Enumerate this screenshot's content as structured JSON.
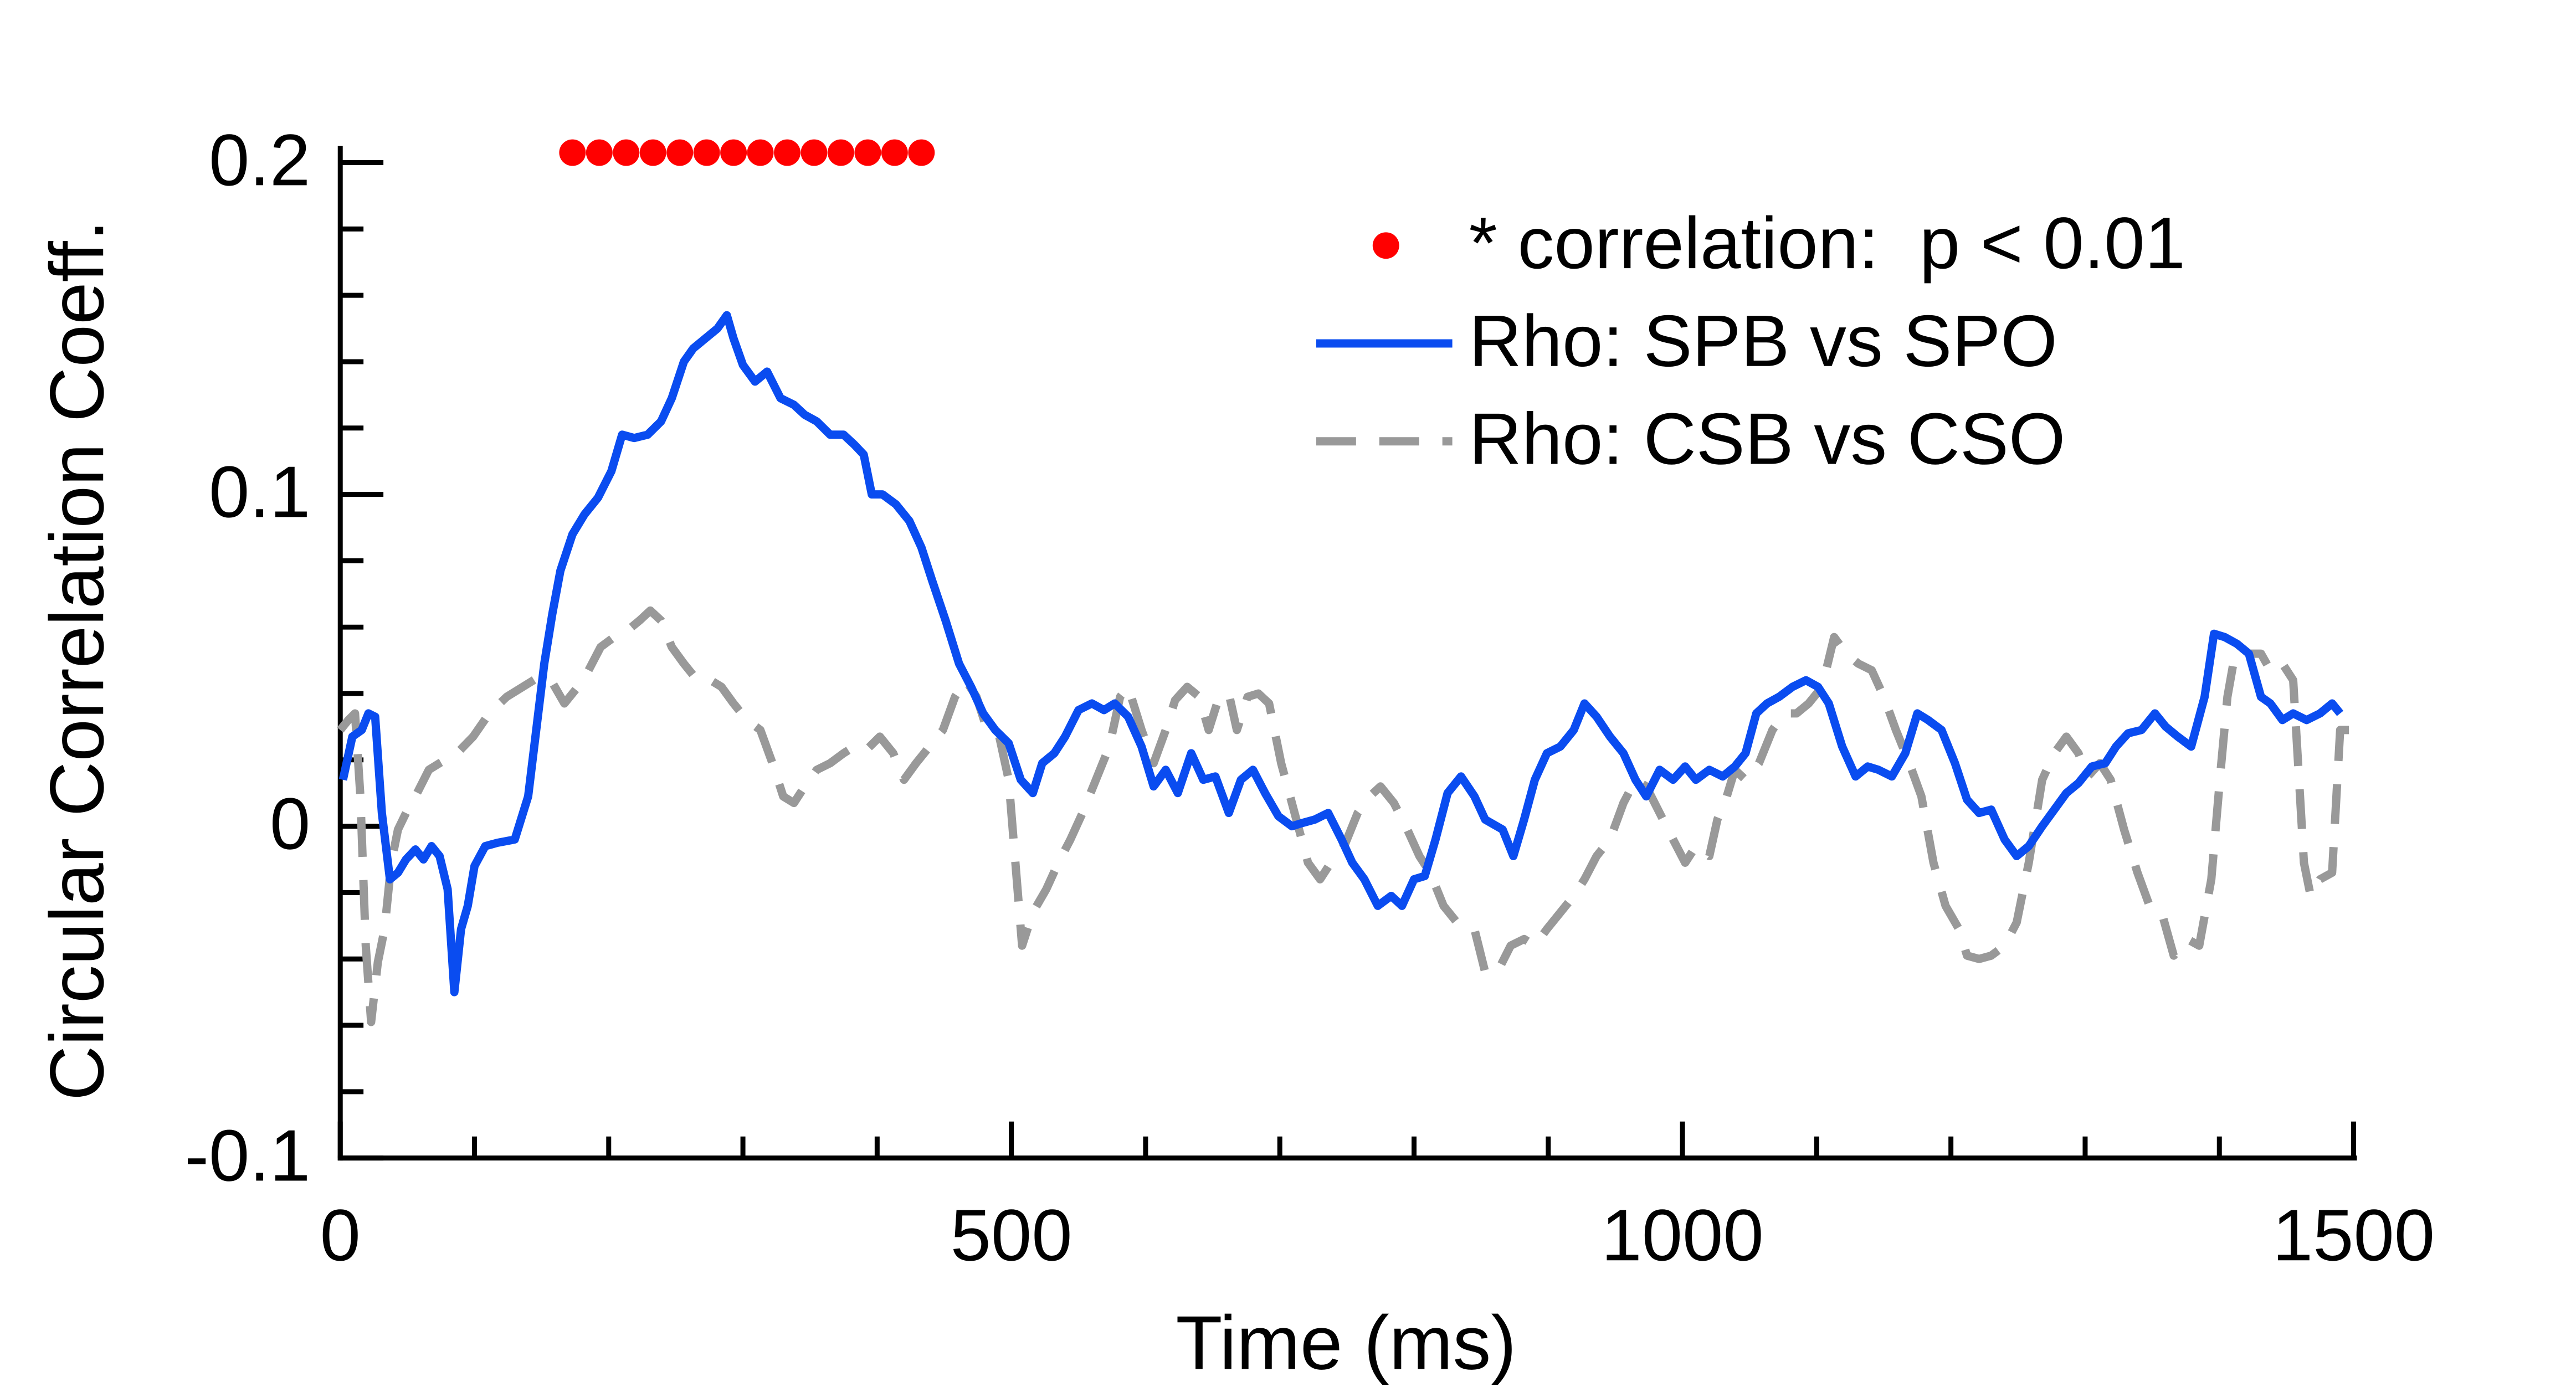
{
  "chart_data": {
    "type": "line",
    "xlabel": "Time (ms)",
    "ylabel": "Circular Correlation Coeff.",
    "xlim": [
      0,
      1500
    ],
    "ylim": [
      -0.1,
      0.2
    ],
    "xticks": [
      0,
      500,
      1000,
      1500
    ],
    "yticks": [
      -0.1,
      0,
      0.1,
      0.2
    ],
    "xminorticks": [
      100,
      200,
      300,
      400,
      600,
      700,
      800,
      900,
      1100,
      1200,
      1300,
      1400
    ],
    "yminorticks": [
      -0.08,
      -0.06,
      -0.04,
      -0.02,
      0.02,
      0.04,
      0.06,
      0.08,
      0.12,
      0.14,
      0.16,
      0.18
    ],
    "legend": "upper right",
    "series": [
      {
        "name": "* correlation:  p < 0.01",
        "color": "#ff0000",
        "style": "dots",
        "x": [
          173,
          193,
          213,
          233,
          253,
          273,
          293,
          313,
          333,
          353,
          373,
          393,
          413,
          433
        ],
        "values": [
          0.203,
          0.203,
          0.203,
          0.203,
          0.203,
          0.203,
          0.203,
          0.203,
          0.203,
          0.203,
          0.203,
          0.203,
          0.203,
          0.203
        ]
      },
      {
        "name": "Rho: SPB vs SPO",
        "color": "#0a4cf0",
        "style": "solid",
        "x": [
          2,
          9,
          16,
          21,
          26,
          31,
          37,
          43,
          49,
          56,
          62,
          68,
          74,
          80,
          85,
          90,
          95,
          100,
          108,
          117,
          130,
          140,
          146,
          152,
          158,
          164,
          173,
          182,
          192,
          202,
          210,
          219,
          229,
          239,
          247,
          256,
          263,
          272,
          281,
          288,
          293,
          300,
          309,
          318,
          328,
          338,
          346,
          355,
          365,
          375,
          383,
          390,
          396,
          404,
          414,
          424,
          433,
          441,
          451,
          461,
          470,
          479,
          488,
          498,
          507,
          516,
          523,
          532,
          540,
          550,
          560,
          569,
          577,
          587,
          597,
          606,
          615,
          624,
          634,
          643,
          652,
          662,
          671,
          680,
          689,
          699,
          709,
          717,
          726,
          736,
          746,
          754,
          763,
          773,
          783,
          791,
          800,
          808,
          816,
          825,
          835,
          845,
          853,
          866,
          874,
          882,
          890,
          899,
          909,
          919,
          927,
          936,
          946,
          956,
          965,
          973,
          983,
          993,
          1002,
          1010,
          1020,
          1030,
          1039,
          1047,
          1055,
          1063,
          1072,
          1082,
          1092,
          1101,
          1109,
          1119,
          1129,
          1138,
          1146,
          1156,
          1166,
          1175,
          1183,
          1193,
          1203,
          1212,
          1221,
          1230,
          1240,
          1249,
          1258,
          1268,
          1277,
          1286,
          1295,
          1305,
          1315,
          1323,
          1332,
          1342,
          1352,
          1360,
          1369,
          1379,
          1389,
          1396,
          1404,
          1413,
          1422,
          1431,
          1438,
          1447,
          1455,
          1465,
          1475,
          1484,
          1490
        ],
        "values": [
          0.014,
          0.027,
          0.029,
          0.034,
          0.033,
          0.004,
          -0.016,
          -0.014,
          -0.01,
          -0.007,
          -0.01,
          -0.006,
          -0.009,
          -0.019,
          -0.05,
          -0.031,
          -0.024,
          -0.012,
          -0.006,
          -0.005,
          -0.004,
          0.009,
          0.029,
          0.049,
          0.064,
          0.077,
          0.088,
          0.094,
          0.099,
          0.107,
          0.118,
          0.117,
          0.118,
          0.122,
          0.129,
          0.14,
          0.144,
          0.147,
          0.15,
          0.154,
          0.147,
          0.139,
          0.134,
          0.137,
          0.129,
          0.127,
          0.124,
          0.122,
          0.118,
          0.118,
          0.115,
          0.112,
          0.1,
          0.1,
          0.097,
          0.092,
          0.084,
          0.074,
          0.062,
          0.049,
          0.042,
          0.034,
          0.029,
          0.025,
          0.014,
          0.01,
          0.019,
          0.022,
          0.027,
          0.035,
          0.037,
          0.035,
          0.037,
          0.033,
          0.024,
          0.012,
          0.017,
          0.01,
          0.022,
          0.014,
          0.015,
          0.004,
          0.014,
          0.017,
          0.01,
          0.003,
          0,
          0.001,
          0.002,
          0.004,
          -0.004,
          -0.011,
          -0.016,
          -0.024,
          -0.021,
          -0.024,
          -0.016,
          -0.015,
          -0.004,
          0.01,
          0.015,
          0.009,
          0.002,
          -0.001,
          -0.009,
          0.002,
          0.014,
          0.022,
          0.024,
          0.029,
          0.037,
          0.033,
          0.027,
          0.022,
          0.014,
          0.009,
          0.017,
          0.014,
          0.018,
          0.014,
          0.017,
          0.015,
          0.018,
          0.022,
          0.034,
          0.037,
          0.039,
          0.042,
          0.044,
          0.042,
          0.037,
          0.024,
          0.015,
          0.018,
          0.017,
          0.015,
          0.022,
          0.034,
          0.032,
          0.029,
          0.019,
          0.008,
          0.004,
          0.005,
          -0.004,
          -0.009,
          -0.006,
          0,
          0.005,
          0.01,
          0.013,
          0.018,
          0.019,
          0.024,
          0.028,
          0.029,
          0.034,
          0.03,
          0.027,
          0.024,
          0.039,
          0.058,
          0.057,
          0.055,
          0.052,
          0.039,
          0.037,
          0.032,
          0.034,
          0.032,
          0.034,
          0.037,
          0.034
        ]
      },
      {
        "name": "Rho: CSB vs CSO",
        "color": "#999999",
        "style": "dashed",
        "x": [
          0,
          6,
          11,
          15,
          19,
          23,
          28,
          33,
          38,
          43,
          49,
          56,
          66,
          74,
          87,
          99,
          111,
          124,
          136,
          148,
          157,
          167,
          177,
          185,
          194,
          204,
          214,
          223,
          231,
          239,
          247,
          256,
          266,
          276,
          284,
          293,
          303,
          313,
          322,
          330,
          338,
          346,
          355,
          365,
          375,
          383,
          392,
          402,
          412,
          420,
          429,
          439,
          449,
          458,
          466,
          474,
          482,
          491,
          498,
          503,
          508,
          516,
          526,
          535,
          544,
          553,
          563,
          573,
          581,
          587,
          597,
          606,
          615,
          622,
          631,
          640,
          647,
          654,
          662,
          668,
          676,
          684,
          692,
          701,
          711,
          721,
          730,
          738,
          748,
          758,
          767,
          775,
          785,
          795,
          804,
          812,
          822,
          832,
          845,
          853,
          862,
          872,
          882,
          890,
          899,
          909,
          919,
          927,
          936,
          946,
          956,
          965,
          973,
          983,
          993,
          1002,
          1010,
          1020,
          1026,
          1033,
          1039,
          1047,
          1057,
          1067,
          1076,
          1085,
          1094,
          1104,
          1113,
          1122,
          1131,
          1141,
          1150,
          1159,
          1169,
          1178,
          1187,
          1196,
          1206,
          1212,
          1221,
          1230,
          1240,
          1249,
          1258,
          1268,
          1277,
          1286,
          1295,
          1302,
          1311,
          1319,
          1329,
          1339,
          1348,
          1357,
          1366,
          1376,
          1385,
          1394,
          1401,
          1406,
          1413,
          1422,
          1431,
          1438,
          1447,
          1455,
          1463,
          1468,
          1475,
          1484,
          1490,
          1500
        ],
        "values": [
          0.029,
          0.032,
          0.034,
          0.009,
          -0.036,
          -0.059,
          -0.041,
          -0.031,
          -0.011,
          -0.001,
          0.004,
          0.009,
          0.017,
          0.019,
          0.022,
          0.027,
          0.034,
          0.039,
          0.042,
          0.045,
          0.044,
          0.037,
          0.042,
          0.047,
          0.054,
          0.057,
          0.059,
          0.062,
          0.065,
          0.062,
          0.054,
          0.049,
          0.044,
          0.044,
          0.042,
          0.037,
          0.032,
          0.029,
          0.019,
          0.009,
          0.007,
          0.012,
          0.017,
          0.019,
          0.022,
          0.024,
          0.023,
          0.027,
          0.022,
          0.014,
          0.019,
          0.024,
          0.029,
          0.039,
          0.044,
          0.039,
          0.029,
          0.027,
          0.014,
          -0.011,
          -0.036,
          -0.026,
          -0.019,
          -0.011,
          -0.004,
          0.004,
          0.014,
          0.024,
          0.039,
          0.042,
          0.029,
          0.019,
          0.029,
          0.038,
          0.042,
          0.039,
          0.029,
          0.038,
          0.04,
          0.029,
          0.039,
          0.04,
          0.037,
          0.019,
          0.004,
          -0.011,
          -0.016,
          -0.011,
          -0.006,
          0.004,
          0.009,
          0.012,
          0.007,
          -0.001,
          -0.009,
          -0.014,
          -0.024,
          -0.029,
          -0.031,
          -0.044,
          -0.044,
          -0.036,
          -0.034,
          -0.036,
          -0.031,
          -0.026,
          -0.021,
          -0.016,
          -0.009,
          -0.004,
          0.007,
          0.014,
          0.012,
          0.004,
          -0.004,
          -0.011,
          -0.006,
          -0.009,
          0.002,
          0.009,
          0.017,
          0.014,
          0.019,
          0.029,
          0.034,
          0.034,
          0.037,
          0.042,
          0.057,
          0.052,
          0.049,
          0.047,
          0.039,
          0.029,
          0.019,
          0.009,
          -0.011,
          -0.024,
          -0.031,
          -0.039,
          -0.04,
          -0.039,
          -0.036,
          -0.029,
          -0.011,
          0.014,
          0.022,
          0.027,
          0.022,
          0.015,
          0.019,
          0.014,
          -0.001,
          -0.014,
          -0.024,
          -0.026,
          -0.039,
          -0.034,
          -0.036,
          -0.016,
          0.017,
          0.039,
          0.055,
          0.052,
          0.052,
          0.047,
          0.049,
          0.044,
          -0.011,
          -0.021,
          -0.016,
          -0.014,
          0.029,
          0.029
        ]
      }
    ]
  }
}
